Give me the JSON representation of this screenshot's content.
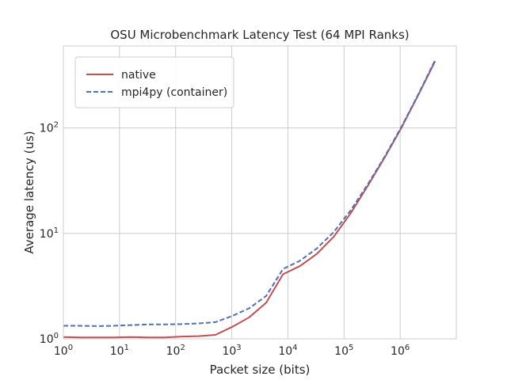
{
  "chart_data": {
    "type": "line",
    "title": "OSU Microbenchmark Latency Test (64 MPI Ranks)",
    "xlabel": "Packet size (bits)",
    "ylabel": "Average latency (us)",
    "xscale": "log",
    "yscale": "log",
    "xlim": [
      1,
      10000000
    ],
    "ylim": [
      1,
      600
    ],
    "grid": true,
    "legend_position": "top-left",
    "x_ticks": [
      {
        "base": "10",
        "exp": "0",
        "value": 1
      },
      {
        "base": "10",
        "exp": "1",
        "value": 10
      },
      {
        "base": "10",
        "exp": "2",
        "value": 100
      },
      {
        "base": "10",
        "exp": "3",
        "value": 1000
      },
      {
        "base": "10",
        "exp": "4",
        "value": 10000
      },
      {
        "base": "10",
        "exp": "5",
        "value": 100000
      },
      {
        "base": "10",
        "exp": "6",
        "value": 1000000
      }
    ],
    "y_ticks": [
      {
        "base": "10",
        "exp": "0",
        "value": 1
      },
      {
        "base": "10",
        "exp": "1",
        "value": 10
      },
      {
        "base": "10",
        "exp": "2",
        "value": 100
      }
    ],
    "x": [
      1,
      2,
      4,
      8,
      16,
      32,
      64,
      128,
      256,
      512,
      1024,
      2048,
      4096,
      8192,
      16384,
      32768,
      65536,
      131072,
      262144,
      524288,
      1048576,
      2097152,
      4194304
    ],
    "series": [
      {
        "name": "native",
        "color": "#c44e52",
        "dash": "solid",
        "values": [
          1.04,
          1.03,
          1.03,
          1.03,
          1.04,
          1.03,
          1.03,
          1.05,
          1.06,
          1.09,
          1.3,
          1.6,
          2.2,
          4.1,
          4.9,
          6.4,
          9.3,
          15.5,
          28,
          52,
          100,
          205,
          430
        ]
      },
      {
        "name": "mpi4py (container)",
        "color": "#4c72b0",
        "dash": "dashed",
        "values": [
          1.33,
          1.33,
          1.32,
          1.33,
          1.35,
          1.37,
          1.37,
          1.38,
          1.4,
          1.44,
          1.65,
          1.95,
          2.55,
          4.6,
          5.5,
          7.2,
          10.3,
          16.5,
          29,
          53,
          102,
          208,
          440
        ]
      }
    ]
  }
}
